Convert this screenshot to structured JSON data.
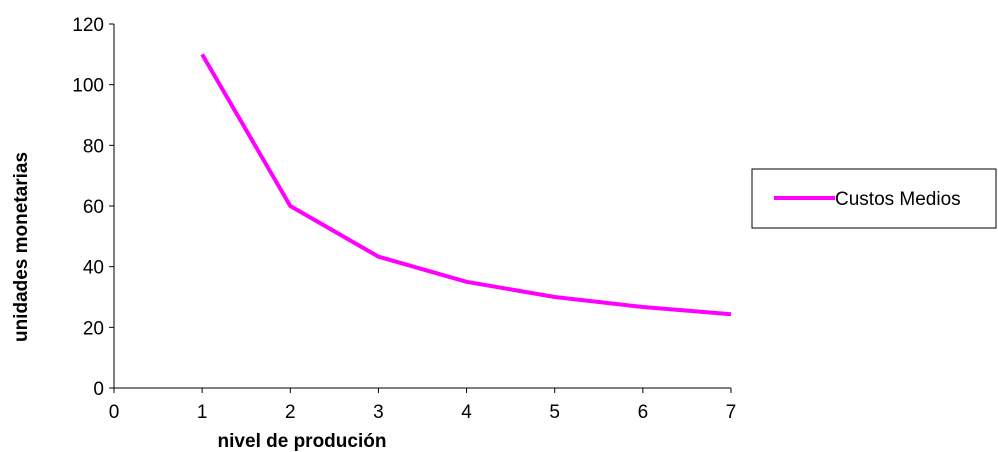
{
  "chart_data": {
    "type": "line",
    "title": "",
    "xlabel": "nivel de produción",
    "ylabel": "unidades monetarias",
    "x": [
      1,
      2,
      3,
      4,
      5,
      6,
      7
    ],
    "series": [
      {
        "name": "Custos Medios",
        "values": [
          110,
          60,
          43.3,
          35,
          30,
          26.7,
          24.3
        ]
      }
    ],
    "xlim": [
      0,
      7
    ],
    "ylim": [
      0,
      120
    ],
    "xticks": [
      "0",
      "1",
      "2",
      "3",
      "4",
      "5",
      "6",
      "7"
    ],
    "yticks": [
      "0",
      "20",
      "40",
      "60",
      "80",
      "100",
      "120"
    ],
    "grid": false,
    "legend_position": "right",
    "colors": {
      "series": "#ff00ff",
      "axis": "#000000"
    }
  }
}
